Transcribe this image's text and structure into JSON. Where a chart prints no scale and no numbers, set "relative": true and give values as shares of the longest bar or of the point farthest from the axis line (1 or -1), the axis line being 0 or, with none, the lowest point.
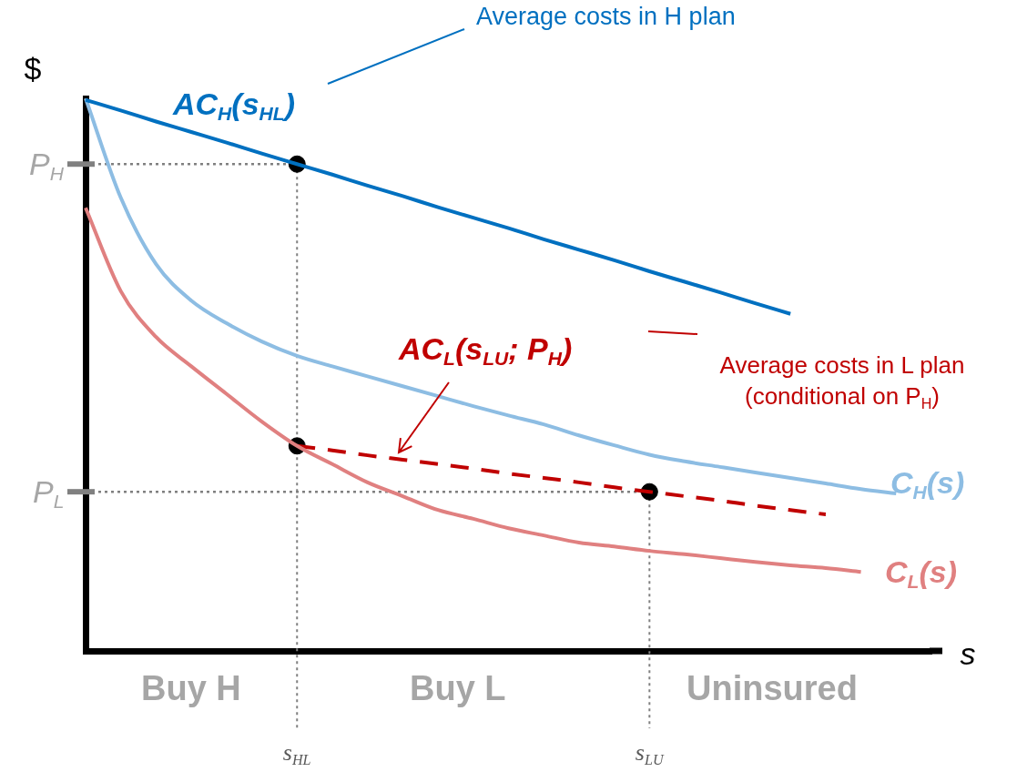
{
  "chart_data": {
    "type": "line",
    "relative": true,
    "legend": false,
    "ylabel": "$",
    "xlabel": "s",
    "categories": [
      null,
      null,
      null,
      null,
      null,
      null,
      "s$_{HL}$",
      null,
      null,
      null,
      null,
      null,
      null,
      null,
      null,
      null,
      "s$_{LU}$",
      null,
      null,
      null,
      null,
      null,
      null,
      null,
      null
    ],
    "series": [
      {
        "name": "AC$_{H}$(s$_{HL}$)",
        "color": "#0070c0",
        "values": [
          0.997,
          0.978,
          0.958,
          0.939,
          0.92,
          0.9,
          0.881,
          0.862,
          0.842,
          0.823,
          0.803,
          0.784,
          0.765,
          0.745,
          0.726,
          0.707,
          0.687,
          0.668,
          0.649,
          0.629,
          0.61,
          null,
          null,
          null,
          null
        ]
      },
      {
        "name": "C$_{H}$(s)",
        "color": "#8dbde3",
        "values": [
          1.0,
          0.82,
          0.7,
          0.634,
          0.593,
          0.56,
          0.534,
          0.515,
          0.497,
          0.479,
          0.461,
          0.443,
          0.426,
          0.41,
          0.39,
          0.372,
          0.355,
          0.343,
          0.333,
          0.323,
          0.313,
          0.303,
          0.293,
          0.285,
          null
        ]
      },
      {
        "name": "C$_{L}$(s)",
        "color": "#e08080",
        "values": [
          0.802,
          0.651,
          0.568,
          0.515,
          0.465,
          0.415,
          0.371,
          0.338,
          0.305,
          0.28,
          0.255,
          0.239,
          0.222,
          0.209,
          0.196,
          0.189,
          0.181,
          0.175,
          0.168,
          0.161,
          0.155,
          0.15,
          0.143,
          null,
          null
        ]
      },
      {
        "name": "AC$_{L}$(s$_{LU}$; P$_{H}$)",
        "color": "#c00000",
        "line_style": "dashed",
        "values": [
          null,
          null,
          null,
          null,
          null,
          null,
          0.371,
          0.363,
          0.354,
          0.346,
          0.338,
          0.33,
          0.321,
          0.313,
          0.305,
          0.296,
          0.288,
          0.28,
          0.272,
          0.263,
          0.255,
          0.247,
          null,
          null,
          null
        ]
      },
      {
        "type": "scatter",
        "color": "#000000",
        "marker": "circle",
        "x": [
          "s$_{HL}$",
          "s$_{HL}$",
          "s$_{LU}$"
        ],
        "values": [
          0.881,
          0.371,
          0.288
        ]
      }
    ],
    "ref_lines": [
      {
        "axis": "y",
        "value": 0.881,
        "label": "P$_{H}$",
        "color": "#808080",
        "line_style": "dotted"
      },
      {
        "axis": "y",
        "value": 0.288,
        "label": "P$_{L}$",
        "color": "#808080",
        "line_style": "dotted"
      },
      {
        "axis": "x",
        "value": "s$_{HL}$",
        "color": "#808080",
        "line_style": "dotted"
      },
      {
        "axis": "x",
        "value": "s$_{LU}$",
        "color": "#808080",
        "line_style": "dotted"
      }
    ],
    "annotations": [
      "Average costs in H plan",
      "Average costs in L plan (conditional on P$_{H}$)",
      "Buy H",
      "Buy L",
      "Uninsured"
    ]
  }
}
